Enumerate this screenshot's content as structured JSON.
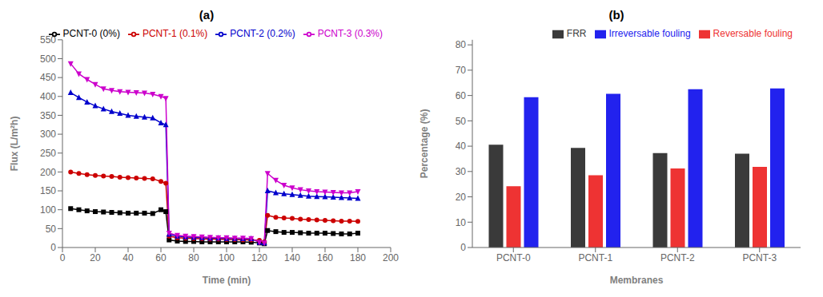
{
  "chart_data": [
    {
      "type": "line",
      "title": "(a)",
      "xlabel": "Time (min)",
      "ylabel": "Flux (L/m²h)",
      "xlim": [
        0,
        200
      ],
      "ylim": [
        0,
        550
      ],
      "xticks": [
        0,
        20,
        40,
        60,
        80,
        100,
        120,
        140,
        160,
        180,
        200
      ],
      "yticks": [
        0,
        50,
        100,
        150,
        200,
        250,
        300,
        350,
        400,
        450,
        500,
        550
      ],
      "legend": "upper right",
      "x": [
        5,
        10,
        15,
        20,
        25,
        30,
        35,
        40,
        45,
        50,
        55,
        60,
        63,
        65,
        70,
        75,
        80,
        85,
        90,
        95,
        100,
        105,
        110,
        115,
        120,
        123,
        125,
        130,
        135,
        140,
        145,
        150,
        155,
        160,
        165,
        170,
        175,
        180
      ],
      "series": [
        {
          "name": "PCNT-0 (0%)",
          "color": "#000000",
          "marker": "square",
          "values": [
            103,
            100,
            97,
            95,
            94,
            93,
            92,
            91,
            91,
            91,
            90,
            100,
            95,
            20,
            17,
            16,
            16,
            15,
            15,
            15,
            15,
            15,
            15,
            14,
            12,
            10,
            45,
            42,
            40,
            40,
            39,
            38,
            38,
            38,
            37,
            36,
            36,
            38
          ]
        },
        {
          "name": "PCNT-1 (0.1%)",
          "color": "#cc0000",
          "marker": "circle",
          "values": [
            200,
            196,
            193,
            191,
            189,
            188,
            186,
            185,
            184,
            183,
            182,
            175,
            170,
            30,
            26,
            25,
            24,
            23,
            22,
            22,
            21,
            21,
            20,
            20,
            19,
            15,
            85,
            80,
            78,
            77,
            75,
            74,
            73,
            72,
            71,
            70,
            70,
            69
          ]
        },
        {
          "name": "PCNT-2 (0.2%)",
          "color": "#0000cc",
          "marker": "triangle-up",
          "values": [
            410,
            397,
            385,
            375,
            367,
            360,
            355,
            350,
            347,
            345,
            343,
            330,
            325,
            35,
            30,
            28,
            27,
            26,
            25,
            25,
            24,
            24,
            23,
            23,
            14,
            12,
            150,
            145,
            142,
            140,
            138,
            136,
            135,
            134,
            133,
            132,
            131,
            130
          ]
        },
        {
          "name": "PCNT-3 (0.3%)",
          "color": "#cc00cc",
          "marker": "triangle-down",
          "values": [
            487,
            460,
            445,
            432,
            420,
            416,
            413,
            411,
            410,
            409,
            406,
            400,
            395,
            38,
            32,
            30,
            29,
            28,
            27,
            26,
            26,
            25,
            25,
            24,
            14,
            12,
            196,
            178,
            165,
            158,
            153,
            150,
            148,
            147,
            146,
            145,
            145,
            148
          ]
        }
      ]
    },
    {
      "type": "bar",
      "title": "(b)",
      "xlabel": "Membranes",
      "ylabel": "Percentage (%)",
      "ylim": [
        0,
        82
      ],
      "yticks": [
        0,
        10,
        20,
        30,
        40,
        50,
        60,
        70,
        80
      ],
      "legend": "upper right",
      "categories": [
        "PCNT-0",
        "PCNT-1",
        "PCNT-2",
        "PCNT-3"
      ],
      "series": [
        {
          "name": "FRR",
          "color": "#3a3a3a",
          "values": [
            40.6,
            39.3,
            37.3,
            37.0
          ]
        },
        {
          "name": "Reversable fouling",
          "color": "#ee3333",
          "values": [
            24.2,
            28.5,
            31.2,
            31.8
          ]
        },
        {
          "name": "Irreversable fouling",
          "color": "#2222ee",
          "values": [
            59.3,
            60.7,
            62.5,
            62.8
          ]
        }
      ]
    }
  ]
}
